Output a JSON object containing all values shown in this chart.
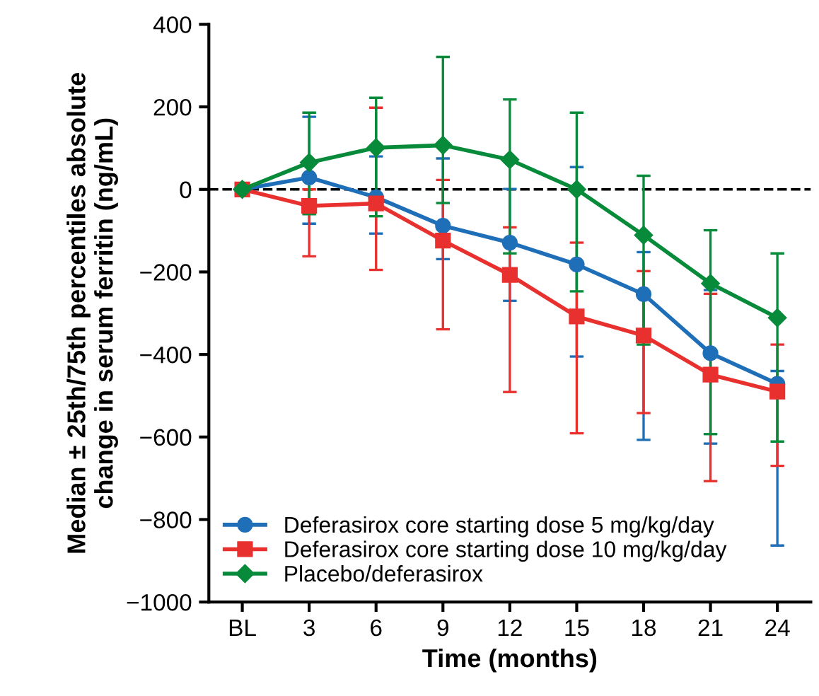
{
  "chart_data": {
    "type": "line",
    "xlabel": "Time (months)",
    "ylabel": "Median ± 25th/75th percentiles absolute\nchange in serum ferritin (ng/mL)",
    "categories": [
      "BL",
      "3",
      "6",
      "9",
      "12",
      "15",
      "18",
      "21",
      "24"
    ],
    "ylim": [
      -1000,
      400
    ],
    "yticks": [
      -1000,
      -800,
      -600,
      -400,
      -200,
      0,
      200,
      400
    ],
    "grid": false,
    "legend": "bottom left",
    "line_style": "solid",
    "ref_lines": [
      {
        "axis": "y",
        "value": 0,
        "color": "#000000",
        "line_style": "dashed"
      }
    ],
    "series": [
      {
        "name": "Deferasirox core starting dose 5 mg/kg/day",
        "color": "#1f6fb8",
        "marker": "circle",
        "values": [
          0,
          29,
          -19,
          -88,
          -129,
          -182,
          -254,
          -397,
          -471
        ],
        "errors": [
          null,
          [
            -83,
            176
          ],
          [
            -107,
            80
          ],
          [
            -169,
            75
          ],
          [
            -270,
            1
          ],
          [
            -405,
            54
          ],
          [
            -607,
            -152
          ],
          [
            -616,
            -244
          ],
          [
            -863,
            -440
          ]
        ]
      },
      {
        "name": "Deferasirox core starting dose 10 mg/kg/day",
        "color": "#e8312f",
        "marker": "square",
        "values": [
          0,
          -40,
          -34,
          -124,
          -207,
          -308,
          -354,
          -449,
          -490
        ],
        "errors": [
          null,
          [
            -162,
            0
          ],
          [
            -195,
            198
          ],
          [
            -339,
            23
          ],
          [
            -491,
            -92
          ],
          [
            -591,
            -129
          ],
          [
            -542,
            -198
          ],
          [
            -707,
            -253
          ],
          [
            -670,
            -376
          ]
        ]
      },
      {
        "name": "Placebo/deferasirox",
        "color": "#078b3a",
        "marker": "diamond",
        "values": [
          0,
          65,
          101,
          107,
          72,
          0,
          -111,
          -228,
          -311
        ],
        "errors": [
          null,
          [
            -60,
            186
          ],
          [
            -65,
            222
          ],
          [
            -33,
            321
          ],
          [
            -155,
            218
          ],
          [
            -247,
            186
          ],
          [
            -376,
            33
          ],
          [
            -593,
            -99
          ],
          [
            -611,
            -155
          ]
        ]
      }
    ]
  }
}
